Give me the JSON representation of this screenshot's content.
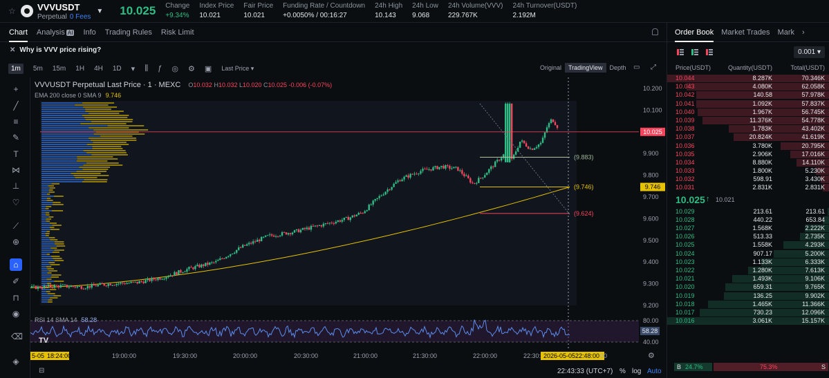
{
  "ticker": {
    "symbol": "VVVUSDT",
    "type": "Perpetual",
    "fees": "0 Fees",
    "price": "10.025",
    "stats": [
      {
        "label": "Change",
        "value": "+9.34%",
        "green": true
      },
      {
        "label": "Index Price",
        "value": "10.021"
      },
      {
        "label": "Fair Price",
        "value": "10.021"
      },
      {
        "label": "Funding Rate / Countdown",
        "value": "+0.0050% / 00:16:27"
      },
      {
        "label": "24h High",
        "value": "10.143"
      },
      {
        "label": "24h Low",
        "value": "9.068"
      },
      {
        "label": "24h Volume(VVV)",
        "value": "229.767K"
      },
      {
        "label": "24h Turnover(USDT)",
        "value": "2.192M"
      }
    ]
  },
  "tabs": [
    "Chart",
    "Analysis",
    "Info",
    "Trading Rules",
    "Risk Limit"
  ],
  "analysis_badge": "AI",
  "question": "Why is VVV price rising?",
  "toolbar": {
    "timeframes": [
      "1m",
      "5m",
      "15m",
      "1H",
      "4H",
      "1D"
    ],
    "last_price": "Last Price",
    "views": [
      "Original",
      "TradingView",
      "Depth"
    ]
  },
  "legend": {
    "title": "VVVUSDT Perpetual Last Price · 1 · MEXC",
    "ohlc": {
      "O": "10.032",
      "H": "10.032",
      "L": "10.020",
      "C": "10.025",
      "chg": "-0.006 (-0.07%)"
    },
    "ema_label": "EMA 200 close 0 SMA 9",
    "ema_value": "9.746"
  },
  "rsi": {
    "label": "RSI 14 SMA 14",
    "value": "58.28"
  },
  "chart_data": {
    "type": "candlestick",
    "ylim": [
      9.2,
      10.2
    ],
    "y_ticks": [
      "10.200",
      "10.100",
      "10.000",
      "9.900",
      "9.800",
      "9.700",
      "9.600",
      "9.500",
      "9.400",
      "9.300",
      "9.200"
    ],
    "x_ticks": [
      "19:00:00",
      "19:30:00",
      "20:00:00",
      "20:30:00",
      "21:00:00",
      "21:30:00",
      "22:00:00",
      "22:30:"
    ],
    "x_start_label": "5-05",
    "x_start_time": "18:24:00",
    "x_cursor_label": "2026-05-05",
    "x_cursor_time": "22:48:00",
    "x_end": "00",
    "last_price_tag": "10.025",
    "ema_tag": "9.746",
    "annotations": [
      "(9.883)",
      "(9.746)",
      "(9.624)"
    ],
    "ema_value": 9.746,
    "rsi_ticks": [
      "80.00",
      "40.00"
    ],
    "rsi_tag": "58.28",
    "path_points": [
      [
        0,
        9.282
      ],
      [
        0.05,
        9.29
      ],
      [
        0.1,
        9.285
      ],
      [
        0.15,
        9.3
      ],
      [
        0.2,
        9.305
      ],
      [
        0.25,
        9.33
      ],
      [
        0.3,
        9.37
      ],
      [
        0.35,
        9.4
      ],
      [
        0.4,
        9.47
      ],
      [
        0.45,
        9.52
      ],
      [
        0.5,
        9.54
      ],
      [
        0.55,
        9.57
      ],
      [
        0.6,
        9.6
      ],
      [
        0.63,
        9.63
      ],
      [
        0.67,
        9.72
      ],
      [
        0.7,
        9.78
      ],
      [
        0.74,
        9.82
      ],
      [
        0.78,
        9.84
      ],
      [
        0.81,
        9.83
      ],
      [
        0.84,
        9.76
      ],
      [
        0.86,
        9.8
      ],
      [
        0.88,
        9.85
      ],
      [
        0.9,
        9.9
      ],
      [
        0.905,
        10.13
      ],
      [
        0.91,
        9.85
      ],
      [
        0.93,
        9.96
      ],
      [
        0.95,
        9.92
      ],
      [
        0.97,
        9.95
      ],
      [
        0.98,
        10.02
      ],
      [
        0.99,
        10.06
      ],
      [
        1.0,
        10.025
      ]
    ]
  },
  "bottom": {
    "time": "22:43:33 (UTC+7)",
    "pct": "%",
    "log": "log",
    "auto": "Auto"
  },
  "orderbook": {
    "tabs": [
      "Order Book",
      "Market Trades",
      "Mark"
    ],
    "precision": "0.001",
    "headers": [
      "Price(USDT)",
      "Quantity(USDT)",
      "Total(USDT)"
    ],
    "asks": [
      {
        "p": "10.044",
        "q": "8.287K",
        "t": "70.346K",
        "w": 1.0
      },
      {
        "p": "10.043",
        "q": "4.080K",
        "t": "62.058K",
        "w": 0.88
      },
      {
        "p": "10.042",
        "q": "140.58",
        "t": "57.978K",
        "w": 0.82
      },
      {
        "p": "10.041",
        "q": "1.092K",
        "t": "57.837K",
        "w": 0.82
      },
      {
        "p": "10.040",
        "q": "1.967K",
        "t": "56.745K",
        "w": 0.81
      },
      {
        "p": "10.039",
        "q": "11.376K",
        "t": "54.778K",
        "w": 0.78
      },
      {
        "p": "10.038",
        "q": "1.783K",
        "t": "43.402K",
        "w": 0.62
      },
      {
        "p": "10.037",
        "q": "20.824K",
        "t": "41.619K",
        "w": 0.59
      },
      {
        "p": "10.036",
        "q": "3.780K",
        "t": "20.795K",
        "w": 0.3
      },
      {
        "p": "10.035",
        "q": "2.906K",
        "t": "17.016K",
        "w": 0.24
      },
      {
        "p": "10.034",
        "q": "8.880K",
        "t": "14.110K",
        "w": 0.2
      },
      {
        "p": "10.033",
        "q": "1.800K",
        "t": "5.230K",
        "w": 0.08
      },
      {
        "p": "10.032",
        "q": "598.91",
        "t": "3.430K",
        "w": 0.05
      },
      {
        "p": "10.031",
        "q": "2.831K",
        "t": "2.831K",
        "w": 0.04
      }
    ],
    "last_price": "10.025",
    "index_price": "10.021",
    "bids": [
      {
        "p": "10.029",
        "q": "213.61",
        "t": "213.61",
        "w": 0.01
      },
      {
        "p": "10.028",
        "q": "440.22",
        "t": "653.84",
        "w": 0.04
      },
      {
        "p": "10.027",
        "q": "1.568K",
        "t": "2.222K",
        "w": 0.15
      },
      {
        "p": "10.026",
        "q": "513.33",
        "t": "2.735K",
        "w": 0.18
      },
      {
        "p": "10.025",
        "q": "1.558K",
        "t": "4.293K",
        "w": 0.28
      },
      {
        "p": "10.024",
        "q": "907.17",
        "t": "5.200K",
        "w": 0.34
      },
      {
        "p": "10.023",
        "q": "1.133K",
        "t": "6.333K",
        "w": 0.42
      },
      {
        "p": "10.022",
        "q": "1.280K",
        "t": "7.613K",
        "w": 0.5
      },
      {
        "p": "10.021",
        "q": "1.493K",
        "t": "9.106K",
        "w": 0.6
      },
      {
        "p": "10.020",
        "q": "659.31",
        "t": "9.765K",
        "w": 0.64
      },
      {
        "p": "10.019",
        "q": "136.25",
        "t": "9.902K",
        "w": 0.65
      },
      {
        "p": "10.018",
        "q": "1.465K",
        "t": "11.366K",
        "w": 0.75
      },
      {
        "p": "10.017",
        "q": "730.23",
        "t": "12.096K",
        "w": 0.8
      },
      {
        "p": "10.016",
        "q": "3.061K",
        "t": "15.157K",
        "w": 1.0
      }
    ],
    "buy_label": "B",
    "buy_pct": "24.7%",
    "sell_pct": "75.3%",
    "sell_label": "S"
  },
  "colors": {
    "up": "#2ebd85",
    "down": "#f6465d",
    "ema": "#e6c200",
    "rsi": "#5b8def",
    "accent": "#2962ff"
  }
}
